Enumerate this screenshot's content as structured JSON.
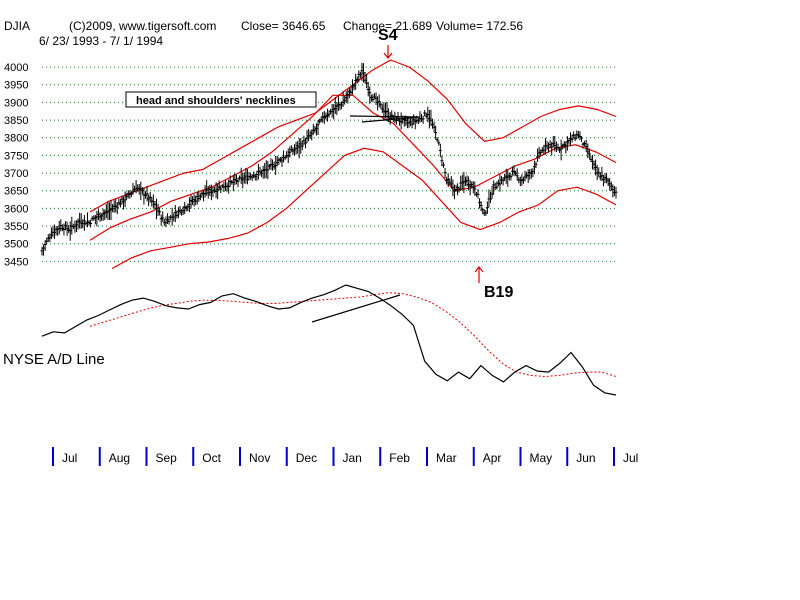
{
  "header": {
    "symbol": "DJIA",
    "copyright": "(C)2009, www.tigersoft.com",
    "close": "Close=  3646.65",
    "change": "Change= 21.689",
    "volume": "Volume= 172.56",
    "date_range": "6/ 23/ 1993 - 7/ 1/ 1994"
  },
  "colors": {
    "price": "#000000",
    "bands": "#e00000",
    "grid": "#008000",
    "month_ticks": "#0000c8",
    "ad_ma": "#e00000"
  },
  "chart_data": [
    {
      "type": "line",
      "title": "DJIA",
      "y_ticks": [
        4000,
        3950,
        3900,
        3850,
        3800,
        3750,
        3700,
        3650,
        3600,
        3550,
        3500,
        3450
      ],
      "ylim": [
        3420,
        4020
      ],
      "grid": true,
      "x_labels": [
        "Jul",
        "Aug",
        "Sep",
        "Oct",
        "Nov",
        "Dec",
        "Jan",
        "Feb",
        "Mar",
        "Apr",
        "May",
        "Jun",
        "Jul"
      ],
      "series": [
        {
          "values": [
            3480,
            3530,
            3550,
            3540,
            3565,
            3560,
            3580,
            3590,
            3610,
            3630,
            3660,
            3640,
            3610,
            3560,
            3580,
            3600,
            3620,
            3640,
            3650,
            3660,
            3670,
            3680,
            3690,
            3700,
            3710,
            3730,
            3750,
            3770,
            3790,
            3820,
            3860,
            3880,
            3900,
            3940,
            3990,
            3920,
            3890,
            3860,
            3850,
            3840,
            3850,
            3870,
            3800,
            3680,
            3650,
            3680,
            3660,
            3580,
            3660,
            3680,
            3700,
            3680,
            3700,
            3760,
            3780,
            3770,
            3790,
            3810,
            3760,
            3700,
            3680,
            3646
          ]
        },
        {
          "values": [
            3590,
            3620,
            3640,
            3660,
            3680,
            3700,
            3710,
            3740,
            3770,
            3800,
            3830,
            3850,
            3870,
            3910,
            3950,
            3990,
            4020,
            4000,
            3960,
            3910,
            3840,
            3790,
            3800,
            3830,
            3860,
            3880,
            3890,
            3880,
            3860
          ]
        },
        {
          "values": [
            3510,
            3545,
            3570,
            3590,
            3620,
            3640,
            3660,
            3690,
            3720,
            3760,
            3810,
            3860,
            3920,
            3920,
            3870,
            3840,
            3780,
            3720,
            3650,
            3660,
            3690,
            3720,
            3740,
            3770,
            3780,
            3760,
            3730
          ]
        },
        {
          "values": [
            3430,
            3460,
            3480,
            3490,
            3500,
            3505,
            3515,
            3530,
            3560,
            3600,
            3650,
            3700,
            3750,
            3770,
            3760,
            3720,
            3680,
            3620,
            3560,
            3540,
            3560,
            3590,
            3610,
            3650,
            3660,
            3640,
            3610
          ]
        }
      ]
    },
    {
      "type": "line",
      "series": [
        {
          "name": "NYSE A/D Line",
          "values": [
            5,
            9,
            8,
            14,
            20,
            24,
            29,
            34,
            38,
            40,
            37,
            33,
            31,
            30,
            34,
            36,
            42,
            44,
            40,
            37,
            33,
            30,
            31,
            36,
            40,
            43,
            47,
            52,
            49,
            46,
            40,
            33,
            25,
            15,
            -18,
            -30,
            -36,
            -28,
            -34,
            -22,
            -31,
            -37,
            -28,
            -22,
            -27,
            -28,
            -20,
            -10,
            -23,
            -40,
            -47,
            -49
          ]
        },
        {
          "values": [
            14,
            18,
            22,
            26,
            30,
            33,
            35,
            37,
            38,
            38,
            37,
            36,
            35,
            35,
            36,
            37,
            38,
            39,
            40,
            41,
            43,
            45,
            44,
            41,
            36,
            28,
            18,
            6,
            -8,
            -20,
            -28,
            -31,
            -32,
            -31,
            -29,
            -28,
            -28,
            -32
          ]
        }
      ]
    }
  ],
  "annotations": {
    "s4": "S4",
    "b19": "B19",
    "necklines": "head and shoulders' necklines",
    "ad_label": "NYSE A/D Line"
  }
}
